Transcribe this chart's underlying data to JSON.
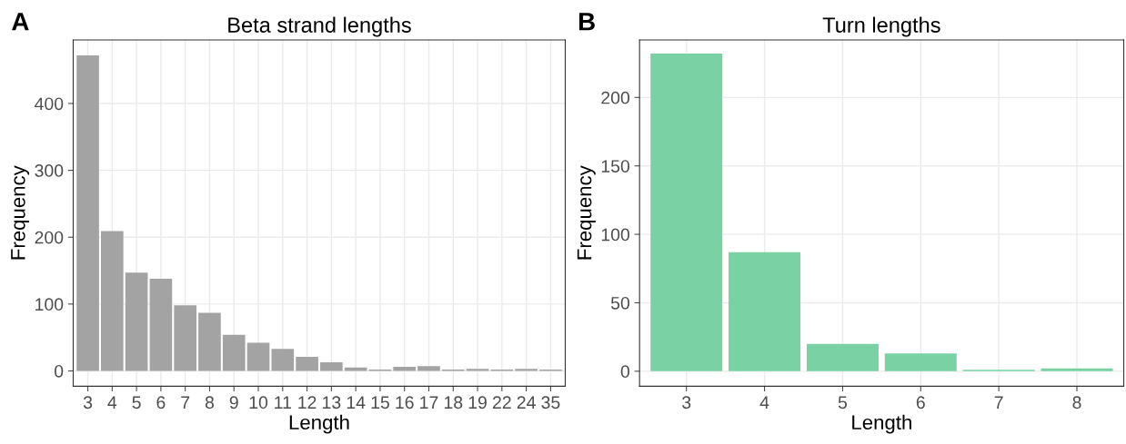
{
  "chart_data": [
    {
      "type": "bar",
      "title": "Beta strand lengths",
      "xlabel": "Length",
      "ylabel": "Frequency",
      "annotations": [
        "A"
      ],
      "categories": [
        "3",
        "4",
        "5",
        "6",
        "7",
        "8",
        "9",
        "10",
        "11",
        "12",
        "13",
        "14",
        "15",
        "16",
        "17",
        "18",
        "19",
        "22",
        "24",
        "35"
      ],
      "values": [
        472,
        209,
        147,
        138,
        98,
        87,
        54,
        42,
        33,
        21,
        13,
        5,
        2,
        6,
        7,
        2,
        3,
        2,
        3,
        2
      ],
      "color": "#a3a3a3",
      "ylim": [
        -23,
        495
      ],
      "yticks": [
        0,
        100,
        200,
        300,
        400
      ],
      "grid": true
    },
    {
      "type": "bar",
      "title": "Turn lengths",
      "xlabel": "Length",
      "ylabel": "Frequency",
      "annotations": [
        "B"
      ],
      "categories": [
        "3",
        "4",
        "5",
        "6",
        "7",
        "8"
      ],
      "values": [
        232,
        87,
        20,
        13,
        1,
        2
      ],
      "color": "#7ad1a3",
      "ylim": [
        -11,
        242
      ],
      "yticks": [
        0,
        50,
        100,
        150,
        200
      ],
      "grid": true
    }
  ]
}
